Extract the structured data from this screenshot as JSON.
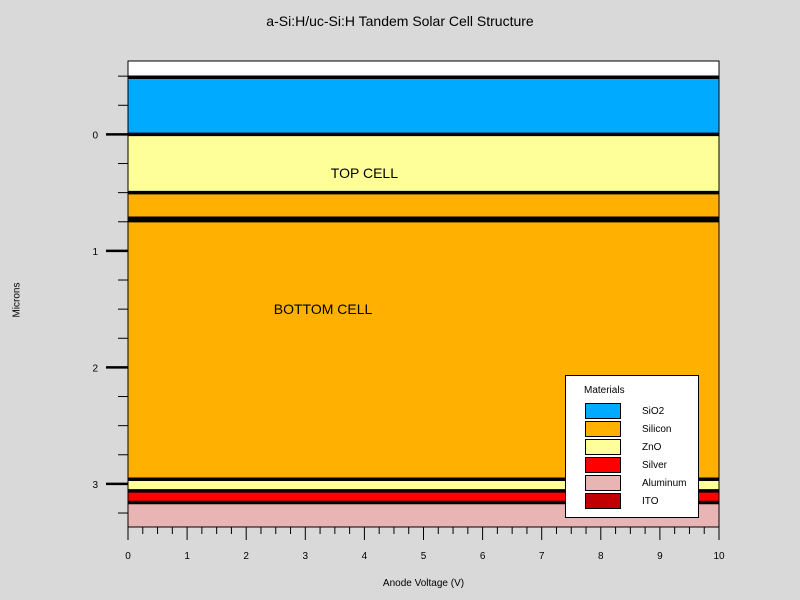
{
  "title": "a-Si:H/uc-Si:H Tandem Solar Cell Structure",
  "axes": {
    "x_label": "Anode Voltage (V)",
    "y_label": "Microns",
    "x_ticks": [
      "0",
      "1",
      "2",
      "3",
      "4",
      "5",
      "6",
      "7",
      "8",
      "9",
      "10"
    ],
    "y_ticks": [
      "0",
      "1",
      "2",
      "3"
    ],
    "x_range": [
      0,
      10
    ],
    "y_range": [
      -0.63,
      3.37
    ]
  },
  "layers": [
    {
      "material": "none",
      "top": -0.63,
      "bottom": -0.49,
      "color": "#ffffff"
    },
    {
      "material": "SiO2",
      "top": -0.49,
      "bottom": 0.0,
      "color": "#00aaff"
    },
    {
      "material": "ZnO",
      "top": 0.0,
      "bottom": 0.5,
      "color": "#ffff99"
    },
    {
      "material": "Silicon",
      "top": 0.5,
      "bottom": 0.72,
      "color": "#ffb000"
    },
    {
      "material": "Silicon",
      "top": 0.74,
      "bottom": 2.96,
      "color": "#ffb000"
    },
    {
      "material": "ZnO",
      "top": 2.96,
      "bottom": 3.06,
      "color": "#ffff99"
    },
    {
      "material": "Silver",
      "top": 3.06,
      "bottom": 3.16,
      "color": "#ff0000"
    },
    {
      "material": "Aluminum",
      "top": 3.16,
      "bottom": 3.37,
      "color": "#e8b4b4"
    }
  ],
  "boundaries": [
    -0.49,
    0.0,
    0.5,
    0.72,
    0.74,
    2.96,
    3.06,
    3.16
  ],
  "annotations": [
    {
      "text": "TOP CELL",
      "x": 4.0,
      "y": 0.33
    },
    {
      "text": "BOTTOM CELL",
      "x": 3.3,
      "y": 1.5
    }
  ],
  "legend": {
    "title": "Materials",
    "items": [
      {
        "label": "SiO2",
        "color": "#00aaff"
      },
      {
        "label": "Silicon",
        "color": "#ffb000"
      },
      {
        "label": "ZnO",
        "color": "#ffff99"
      },
      {
        "label": "Silver",
        "color": "#ff0000"
      },
      {
        "label": "Aluminum",
        "color": "#e8b4b4"
      },
      {
        "label": "ITO",
        "color": "#c00000"
      }
    ]
  }
}
